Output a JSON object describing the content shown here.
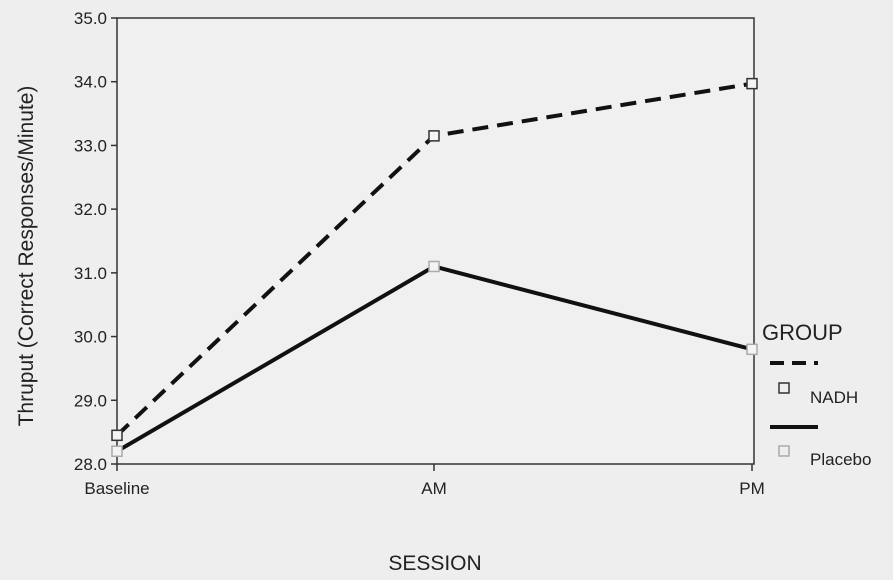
{
  "chart_data": {
    "type": "line",
    "categories": [
      "Baseline",
      "AM",
      "PM"
    ],
    "series": [
      {
        "name": "NADH",
        "values": [
          28.45,
          33.15,
          33.97
        ],
        "color": "#111111",
        "dash": "dashed",
        "marker_color": "#333333"
      },
      {
        "name": "Placebo",
        "values": [
          28.2,
          31.1,
          29.8
        ],
        "color": "#111111",
        "dash": "solid",
        "marker_color": "#aaaaaa"
      }
    ],
    "xlabel": "SESSION",
    "ylabel": "Thruput (Correct Responses/Minute)",
    "ylim": [
      28.0,
      35.0
    ],
    "yticks": [
      "28.0",
      "29.0",
      "30.0",
      "31.0",
      "32.0",
      "33.0",
      "34.0",
      "35.0"
    ],
    "legend_title": "GROUP",
    "legend_position": "right",
    "grid": false
  }
}
